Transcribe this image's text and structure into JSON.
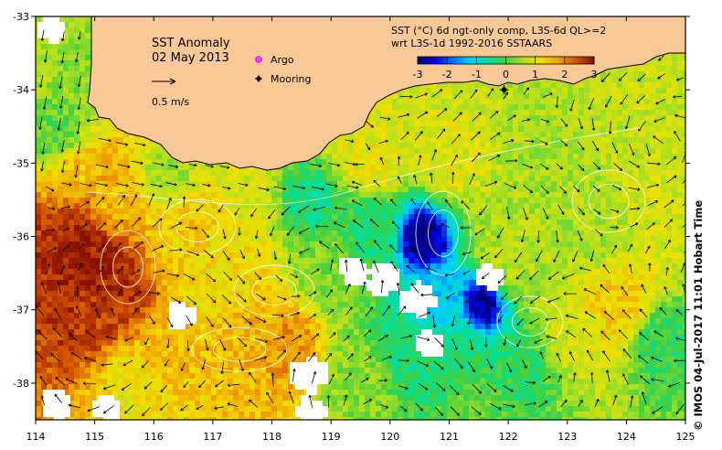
{
  "title": {
    "line1": "SST Anomaly",
    "line2": "02 May 2013"
  },
  "legend": {
    "argo_label": "Argo",
    "mooring_label": "Mooring",
    "argo_color": "#ff00ff",
    "mooring_color": "#000000",
    "vector_label": "0.5 m/s"
  },
  "colorbar": {
    "line1": "SST (°C) 6d ngt-only comp, L3S-6d QL>=2",
    "line2": "wrt L3S-1d 1992-2016 SSTAARS",
    "min": -3,
    "max": 3,
    "ticks": [
      "-3",
      "-2",
      "-1",
      "0",
      "1",
      "2",
      "3"
    ],
    "colors": [
      "#00007a",
      "#0000e0",
      "#0070ff",
      "#00d0ff",
      "#00e0a0",
      "#40d040",
      "#b0e020",
      "#f0e000",
      "#f0a000",
      "#d05000",
      "#8b1000"
    ]
  },
  "axes": {
    "lon_min": 114,
    "lon_max": 125,
    "lat_min": -38.5,
    "lat_max": -33,
    "x_ticks": [
      "114",
      "115",
      "116",
      "117",
      "118",
      "119",
      "120",
      "121",
      "122",
      "123",
      "124",
      "125"
    ],
    "y_ticks": [
      "-33",
      "-34",
      "-35",
      "-36",
      "-37",
      "-38"
    ]
  },
  "land_color": "#f8c896",
  "credit": "© IMOS 04-Jul-2017 11:01 Hobart Time",
  "mooring": {
    "lon": 121.93,
    "lat": -34.0
  },
  "argo": {
    "lon": 117.95,
    "lat": -33.68
  },
  "anomaly_blobs": [
    {
      "lon": 114.9,
      "lat": -36.2,
      "r": 0.55,
      "v": 2.9
    },
    {
      "lon": 115.4,
      "lat": -36.6,
      "r": 0.5,
      "v": 2.7
    },
    {
      "lon": 114.7,
      "lat": -37.0,
      "r": 0.4,
      "v": 2.6
    },
    {
      "lon": 115.3,
      "lat": -35.6,
      "r": 0.4,
      "v": 1.5
    },
    {
      "lon": 116.4,
      "lat": -36.0,
      "r": 0.6,
      "v": 1.4
    },
    {
      "lon": 117.0,
      "lat": -36.5,
      "r": 0.6,
      "v": 1.2
    },
    {
      "lon": 117.6,
      "lat": -37.3,
      "r": 0.5,
      "v": 1.6
    },
    {
      "lon": 118.2,
      "lat": -37.4,
      "r": 0.45,
      "v": 1.9
    },
    {
      "lon": 116.2,
      "lat": -37.6,
      "r": 0.5,
      "v": 1.5
    },
    {
      "lon": 115.6,
      "lat": -38.0,
      "r": 0.4,
      "v": 1.1
    },
    {
      "lon": 118.9,
      "lat": -36.4,
      "r": 0.5,
      "v": 0.3
    },
    {
      "lon": 119.6,
      "lat": -35.9,
      "r": 0.4,
      "v": -0.3
    },
    {
      "lon": 118.6,
      "lat": -35.5,
      "r": 0.35,
      "v": -0.4
    },
    {
      "lon": 117.5,
      "lat": -35.35,
      "r": 0.35,
      "v": 0.9
    },
    {
      "lon": 116.2,
      "lat": -35.2,
      "r": 0.35,
      "v": 0.5
    },
    {
      "lon": 119.5,
      "lat": -37.9,
      "r": 0.5,
      "v": 0.4
    },
    {
      "lon": 120.2,
      "lat": -37.5,
      "r": 0.45,
      "v": -0.4
    },
    {
      "lon": 121.0,
      "lat": -37.6,
      "r": 0.55,
      "v": -0.3
    },
    {
      "lon": 122.2,
      "lat": -37.7,
      "r": 0.4,
      "v": -0.2
    },
    {
      "lon": 121.3,
      "lat": -38.3,
      "r": 0.4,
      "v": 0.2
    },
    {
      "lon": 120.8,
      "lat": -36.9,
      "r": 0.4,
      "v": -1.2
    },
    {
      "lon": 120.5,
      "lat": -36.0,
      "r": 0.3,
      "v": -3.0
    },
    {
      "lon": 121.5,
      "lat": -36.9,
      "r": 0.3,
      "v": -3.0
    },
    {
      "lon": 122.0,
      "lat": -36.2,
      "r": 0.5,
      "v": 0.7
    },
    {
      "lon": 123.3,
      "lat": -35.8,
      "r": 0.6,
      "v": 0.6
    },
    {
      "lon": 124.3,
      "lat": -35.4,
      "r": 0.5,
      "v": 0.9
    },
    {
      "lon": 123.8,
      "lat": -36.9,
      "r": 0.5,
      "v": 1.4
    },
    {
      "lon": 124.5,
      "lat": -37.4,
      "r": 0.4,
      "v": -0.2
    },
    {
      "lon": 123.0,
      "lat": -37.3,
      "r": 0.4,
      "v": 0.9
    },
    {
      "lon": 122.7,
      "lat": -34.9,
      "r": 0.5,
      "v": 0.6
    },
    {
      "lon": 121.0,
      "lat": -34.9,
      "r": 0.4,
      "v": 1.0
    },
    {
      "lon": 119.6,
      "lat": -34.9,
      "r": 0.4,
      "v": 1.1
    },
    {
      "lon": 124.1,
      "lat": -34.4,
      "r": 0.5,
      "v": 0.8
    },
    {
      "lon": 114.3,
      "lat": -34.6,
      "r": 0.3,
      "v": 0.1
    },
    {
      "lon": 114.6,
      "lat": -35.1,
      "r": 0.3,
      "v": 1.5
    },
    {
      "lon": 114.9,
      "lat": -33.7,
      "r": 0.35,
      "v": 0.4
    }
  ],
  "data_gaps": [
    {
      "lon": 118.55,
      "lat": -37.8,
      "r": 0.25
    },
    {
      "lon": 118.6,
      "lat": -38.3,
      "r": 0.18
    },
    {
      "lon": 119.8,
      "lat": -36.5,
      "r": 0.22
    },
    {
      "lon": 120.4,
      "lat": -36.8,
      "r": 0.24
    },
    {
      "lon": 119.3,
      "lat": -36.4,
      "r": 0.18
    },
    {
      "lon": 114.3,
      "lat": -38.2,
      "r": 0.2
    },
    {
      "lon": 115.1,
      "lat": -38.3,
      "r": 0.18
    },
    {
      "lon": 116.4,
      "lat": -37.0,
      "r": 0.16
    },
    {
      "lon": 120.6,
      "lat": -37.4,
      "r": 0.15
    },
    {
      "lon": 121.6,
      "lat": -36.5,
      "r": 0.15
    },
    {
      "lon": 116.3,
      "lat": -34.6,
      "r": 0.14
    },
    {
      "lon": 114.2,
      "lat": -33.1,
      "r": 0.15
    }
  ]
}
